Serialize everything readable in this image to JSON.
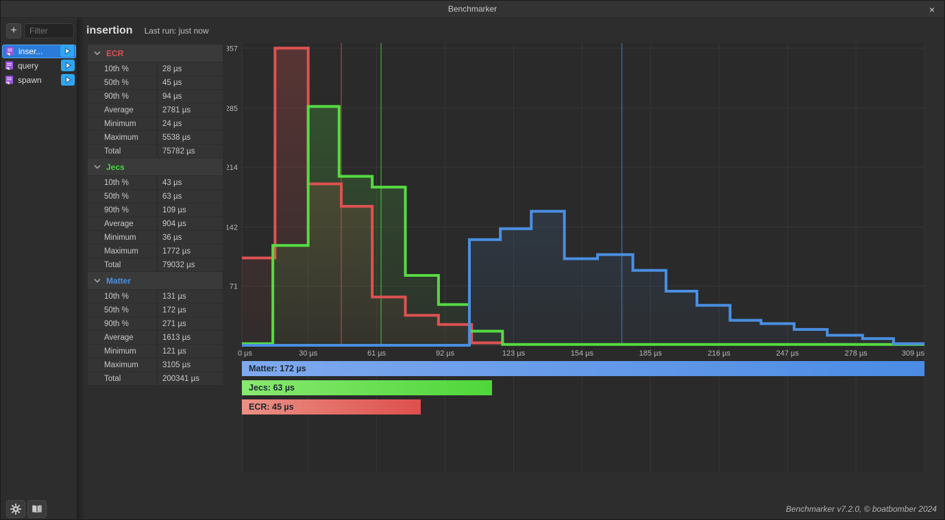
{
  "titlebar": {
    "title": "Benchmarker",
    "close_label": "×"
  },
  "sidebar": {
    "add_label": "+",
    "filter_placeholder": "Filter",
    "items": [
      {
        "label": "inser...",
        "selected": true
      },
      {
        "label": "query",
        "selected": false
      },
      {
        "label": "spawn",
        "selected": false
      }
    ]
  },
  "header": {
    "title": "insertion",
    "last_run": "Last run: just now"
  },
  "stats": {
    "sections": [
      {
        "name": "ECR",
        "color": "#de5151",
        "rows": [
          {
            "label": "10th %",
            "value": "28 µs"
          },
          {
            "label": "50th %",
            "value": "45 µs"
          },
          {
            "label": "90th %",
            "value": "94 µs"
          },
          {
            "label": "Average",
            "value": "2781 µs"
          },
          {
            "label": "Minimum",
            "value": "24 µs"
          },
          {
            "label": "Maximum",
            "value": "5538 µs"
          },
          {
            "label": "Total",
            "value": "75782 µs"
          }
        ]
      },
      {
        "name": "Jecs",
        "color": "#47d53d",
        "rows": [
          {
            "label": "10th %",
            "value": "43 µs"
          },
          {
            "label": "50th %",
            "value": "63 µs"
          },
          {
            "label": "90th %",
            "value": "109 µs"
          },
          {
            "label": "Average",
            "value": "904 µs"
          },
          {
            "label": "Minimum",
            "value": "36 µs"
          },
          {
            "label": "Maximum",
            "value": "1772 µs"
          },
          {
            "label": "Total",
            "value": "79032 µs"
          }
        ]
      },
      {
        "name": "Matter",
        "color": "#4a90e2",
        "rows": [
          {
            "label": "10th %",
            "value": "131 µs"
          },
          {
            "label": "50th %",
            "value": "172 µs"
          },
          {
            "label": "90th %",
            "value": "271 µs"
          },
          {
            "label": "Average",
            "value": "1613 µs"
          },
          {
            "label": "Minimum",
            "value": "121 µs"
          },
          {
            "label": "Maximum",
            "value": "3105 µs"
          },
          {
            "label": "Total",
            "value": "200341 µs"
          }
        ]
      }
    ]
  },
  "chart_data": {
    "type": "histogram-step",
    "x_unit": "µs",
    "xlim": [
      0,
      309
    ],
    "ylim": [
      0,
      363
    ],
    "grid": true,
    "x_ticks": [
      {
        "value": 0,
        "label": "0 µs"
      },
      {
        "value": 30,
        "label": "30 µs"
      },
      {
        "value": 61,
        "label": "61 µs"
      },
      {
        "value": 92,
        "label": "92 µs"
      },
      {
        "value": 123,
        "label": "123 µs"
      },
      {
        "value": 154,
        "label": "154 µs"
      },
      {
        "value": 185,
        "label": "185 µs"
      },
      {
        "value": 216,
        "label": "216 µs"
      },
      {
        "value": 247,
        "label": "247 µs"
      },
      {
        "value": 278,
        "label": "278 µs"
      },
      {
        "value": 309,
        "label": "309 µs"
      }
    ],
    "y_ticks": [
      357,
      285,
      214,
      142,
      71
    ],
    "series": [
      {
        "name": "ECR",
        "color": "#de5252",
        "median_us": 45,
        "bin_edges_us": [
          0,
          15,
          30,
          45,
          59,
          74,
          89,
          104,
          118
        ],
        "counts": [
          105,
          357,
          194,
          167,
          58,
          36,
          25,
          3
        ],
        "drops_to_zero_at_end": true
      },
      {
        "name": "Jecs",
        "color": "#55db41",
        "median_us": 63,
        "bin_edges_us": [
          0,
          14,
          30,
          44,
          59,
          74,
          89,
          103,
          118,
          309
        ],
        "counts": [
          2,
          120,
          287,
          203,
          190,
          84,
          49,
          17,
          1
        ],
        "drops_to_zero_at_end": false
      },
      {
        "name": "Matter",
        "color": "#4a8fe2",
        "median_us": 172,
        "bin_edges_us": [
          0,
          103,
          117,
          131,
          146,
          161,
          177,
          192,
          206,
          221,
          235,
          250,
          265,
          281,
          295,
          309
        ],
        "counts": [
          0,
          127,
          140,
          161,
          104,
          109,
          90,
          65,
          48,
          30,
          26,
          19,
          12,
          8,
          2
        ],
        "drops_to_zero_at_end": false
      }
    ],
    "legend": [
      {
        "series": "Matter",
        "label": "Matter: 172 µs",
        "value_us": 172,
        "grad": [
          "#7fa9ee",
          "#4a8be4"
        ]
      },
      {
        "series": "Jecs",
        "label": "Jecs: 63 µs",
        "value_us": 63,
        "grad": [
          "#88e970",
          "#4fd63a"
        ]
      },
      {
        "series": "ECR",
        "label": "ECR: 45 µs",
        "value_us": 45,
        "grad": [
          "#ea9184",
          "#de4f4d"
        ]
      }
    ],
    "legend_max_us": 172
  },
  "footer": {
    "credit": "Benchmarker v7.2.0, © boatbomber 2024"
  }
}
